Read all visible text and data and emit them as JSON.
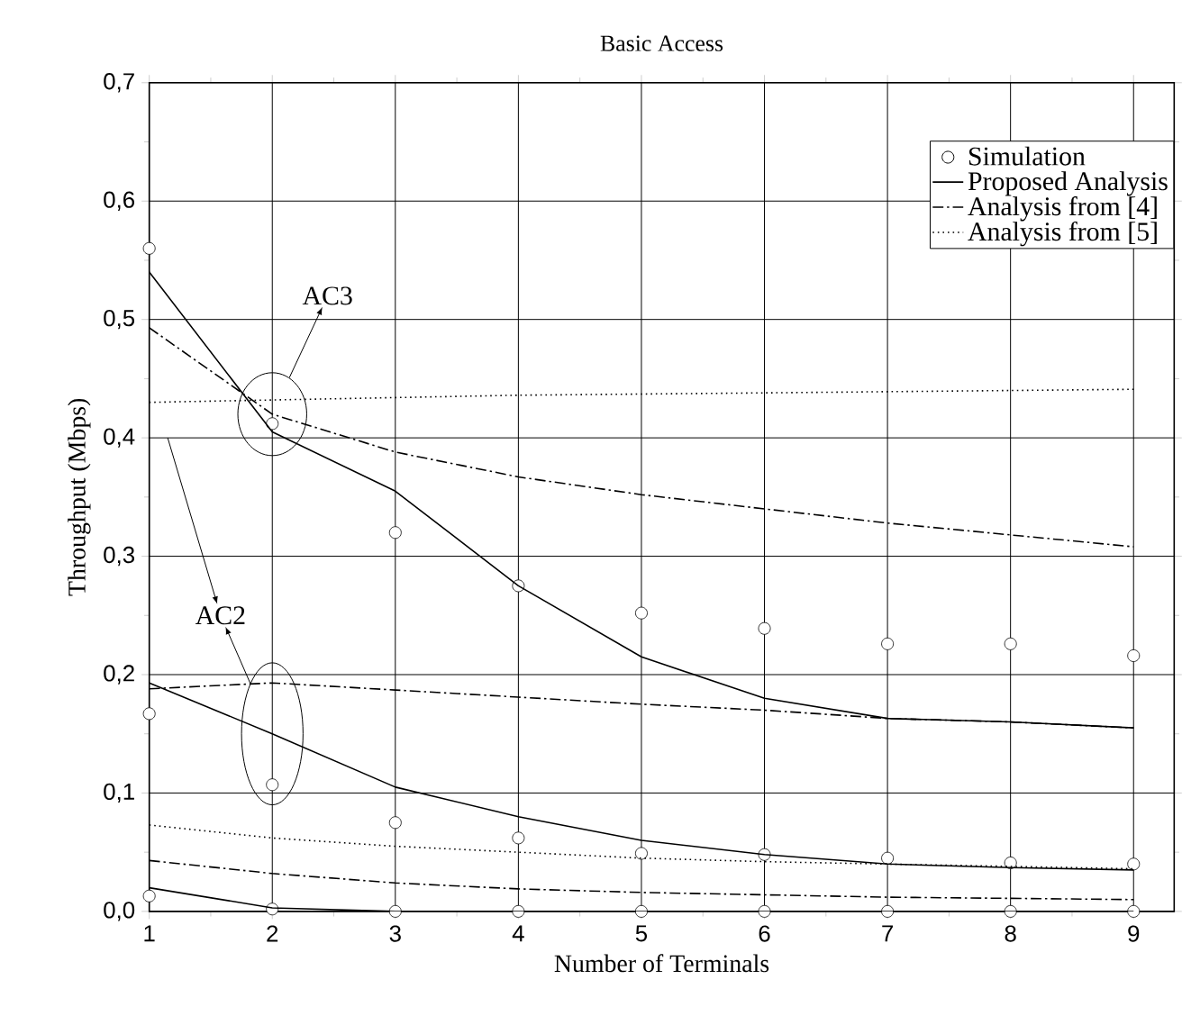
{
  "chart_data": {
    "type": "line",
    "title": "Basic Access",
    "xlabel": "Number of Terminals",
    "ylabel": "Throughput (Mbps)",
    "x": [
      1,
      2,
      3,
      4,
      5,
      6,
      7,
      8,
      9
    ],
    "xlim": [
      1,
      9.33
    ],
    "xticks": [
      1,
      2,
      3,
      4,
      5,
      6,
      7,
      8,
      9
    ],
    "ylim": [
      0,
      0.7
    ],
    "yticks": [
      {
        "value": 0,
        "label": "0,0"
      },
      {
        "value": 0.1,
        "label": "0,1"
      },
      {
        "value": 0.2,
        "label": "0,2"
      },
      {
        "value": 0.3,
        "label": "0,3"
      },
      {
        "value": 0.4,
        "label": "0,4"
      },
      {
        "value": 0.5,
        "label": "0,5"
      },
      {
        "value": 0.6,
        "label": "0,6"
      },
      {
        "value": 0.7,
        "label": "0,7"
      }
    ],
    "grid": true,
    "legend": "top right",
    "series": [
      {
        "name": "Simulation",
        "type": "scatter",
        "marker": "circle",
        "color": "#000000",
        "values": [
          0.56,
          0.412,
          0.32,
          0.275,
          0.252,
          0.239,
          0.226,
          0.226,
          0.216
        ]
      },
      {
        "name": "Proposed Analysis",
        "line_style": "solid",
        "color": "#000000",
        "values": [
          0.54,
          0.405,
          0.355,
          0.275,
          0.215,
          0.18,
          0.163,
          0.16,
          0.155
        ]
      },
      {
        "name": "Analysis from [4]",
        "line_style": "dashdot",
        "color": "#000000",
        "values": [
          0.493,
          0.42,
          0.388,
          0.367,
          0.352,
          0.34,
          0.328,
          0.318,
          0.308
        ]
      },
      {
        "name": "Analysis from [5]",
        "line_style": "dotted",
        "color": "#000000",
        "values": [
          0.43,
          0.432,
          0.434,
          0.436,
          0.437,
          0.438,
          0.439,
          0.44,
          0.441
        ]
      },
      {
        "type": "scatter",
        "marker": "circle",
        "color": "#000000",
        "values": [
          0.167,
          0.107,
          0.075,
          0.062,
          0.049,
          0.048,
          0.045,
          0.041,
          0.04
        ]
      },
      {
        "type": "scatter",
        "marker": "circle",
        "color": "#000000",
        "values": [
          0.013,
          0.002,
          0,
          0,
          0,
          0,
          0,
          0,
          0
        ]
      },
      {
        "line_style": "solid",
        "color": "#000000",
        "values": [
          0.193,
          0.15,
          0.105,
          0.08,
          0.06,
          0.048,
          0.04,
          0.037,
          0.035
        ]
      },
      {
        "line_style": "solid",
        "color": "#000000",
        "values": [
          0.02,
          0.003,
          0,
          0,
          0,
          0,
          0,
          0,
          0
        ]
      },
      {
        "line_style": "dashdot",
        "color": "#000000",
        "values": [
          0.188,
          0.193,
          0.187,
          0.181,
          0.175,
          0.17,
          0.163,
          0.16,
          0.155
        ]
      },
      {
        "line_style": "dashdot",
        "color": "#000000",
        "values": [
          0.043,
          0.032,
          0.024,
          0.019,
          0.016,
          0.014,
          0.012,
          0.011,
          0.01
        ]
      },
      {
        "line_style": "dotted",
        "color": "#000000",
        "values": [
          0.073,
          0.062,
          0.055,
          0.05,
          0.045,
          0.042,
          0.04,
          0.038,
          0.036
        ]
      }
    ],
    "annotations": [
      "AC3",
      "AC2"
    ]
  }
}
